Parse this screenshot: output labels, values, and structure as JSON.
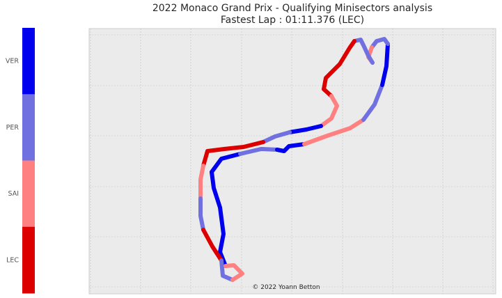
{
  "chart_data": {
    "type": "line",
    "title": "2022 Monaco Grand Prix - Qualifying Minisectors analysis",
    "subtitle": "Fastest Lap : 01:11.376 (LEC)",
    "annotation": "© 2022 Yoann Betton",
    "grid": true,
    "colorbar": {
      "labels": [
        "VER",
        "PER",
        "SAI",
        "LEC"
      ],
      "colors": [
        "#0000ee",
        "#7070e0",
        "#ff8080",
        "#dd0000"
      ]
    },
    "drivers": {
      "VER": "#0000ee",
      "PER": "#7070e0",
      "SAI": "#ff8080",
      "LEC": "#dd0000"
    },
    "track": [
      {
        "driver": "VER",
        "points": [
          [
            324,
            382
          ],
          [
            316,
            362
          ],
          [
            321,
            336
          ],
          [
            316,
            298
          ],
          [
            307,
            270
          ],
          [
            304,
            247
          ],
          [
            318,
            228
          ],
          [
            345,
            221
          ]
        ]
      },
      {
        "driver": "PER",
        "points": [
          [
            345,
            221
          ],
          [
            375,
            214
          ],
          [
            398,
            215
          ]
        ]
      },
      {
        "driver": "VER",
        "points": [
          [
            398,
            215
          ],
          [
            408,
            217
          ],
          [
            415,
            210
          ],
          [
            437,
            207
          ]
        ]
      },
      {
        "driver": "SAI",
        "points": [
          [
            437,
            207
          ],
          [
            470,
            195
          ],
          [
            503,
            184
          ],
          [
            522,
            172
          ]
        ]
      },
      {
        "driver": "PER",
        "points": [
          [
            522,
            172
          ],
          [
            538,
            150
          ],
          [
            549,
            122
          ]
        ]
      },
      {
        "driver": "VER",
        "points": [
          [
            549,
            122
          ],
          [
            555,
            95
          ],
          [
            557,
            63
          ]
        ]
      },
      {
        "driver": "PER",
        "points": [
          [
            557,
            63
          ],
          [
            552,
            56
          ],
          [
            541,
            59
          ],
          [
            534,
            68
          ]
        ]
      },
      {
        "driver": "SAI",
        "points": [
          [
            534,
            68
          ],
          [
            529,
            82
          ],
          [
            535,
            90
          ]
        ]
      },
      {
        "driver": "PER",
        "points": [
          [
            535,
            90
          ],
          [
            529,
            80
          ],
          [
            522,
            65
          ],
          [
            518,
            57
          ],
          [
            509,
            59
          ]
        ]
      },
      {
        "driver": "LEC",
        "points": [
          [
            509,
            59
          ],
          [
            502,
            69
          ],
          [
            488,
            92
          ],
          [
            468,
            112
          ],
          [
            465,
            128
          ],
          [
            476,
            138
          ]
        ]
      },
      {
        "driver": "SAI",
        "points": [
          [
            476,
            138
          ],
          [
            484,
            152
          ],
          [
            476,
            170
          ],
          [
            461,
            181
          ]
        ]
      },
      {
        "driver": "VER",
        "points": [
          [
            461,
            181
          ],
          [
            440,
            186
          ],
          [
            416,
            190
          ]
        ]
      },
      {
        "driver": "PER",
        "points": [
          [
            416,
            190
          ],
          [
            395,
            196
          ],
          [
            378,
            204
          ]
        ]
      },
      {
        "driver": "LEC",
        "points": [
          [
            378,
            204
          ],
          [
            350,
            211
          ],
          [
            322,
            214
          ],
          [
            298,
            217
          ],
          [
            292,
            238
          ]
        ]
      },
      {
        "driver": "SAI",
        "points": [
          [
            292,
            238
          ],
          [
            288,
            258
          ],
          [
            288,
            285
          ]
        ]
      },
      {
        "driver": "PER",
        "points": [
          [
            288,
            285
          ],
          [
            288,
            310
          ],
          [
            292,
            330
          ]
        ]
      },
      {
        "driver": "LEC",
        "points": [
          [
            292,
            330
          ],
          [
            305,
            354
          ],
          [
            318,
            374
          ]
        ]
      },
      {
        "driver": "PER",
        "points": [
          [
            318,
            374
          ],
          [
            320,
            396
          ],
          [
            334,
            402
          ]
        ]
      },
      {
        "driver": "SAI",
        "points": [
          [
            334,
            402
          ],
          [
            348,
            393
          ],
          [
            336,
            381
          ],
          [
            324,
            382
          ]
        ]
      }
    ]
  }
}
